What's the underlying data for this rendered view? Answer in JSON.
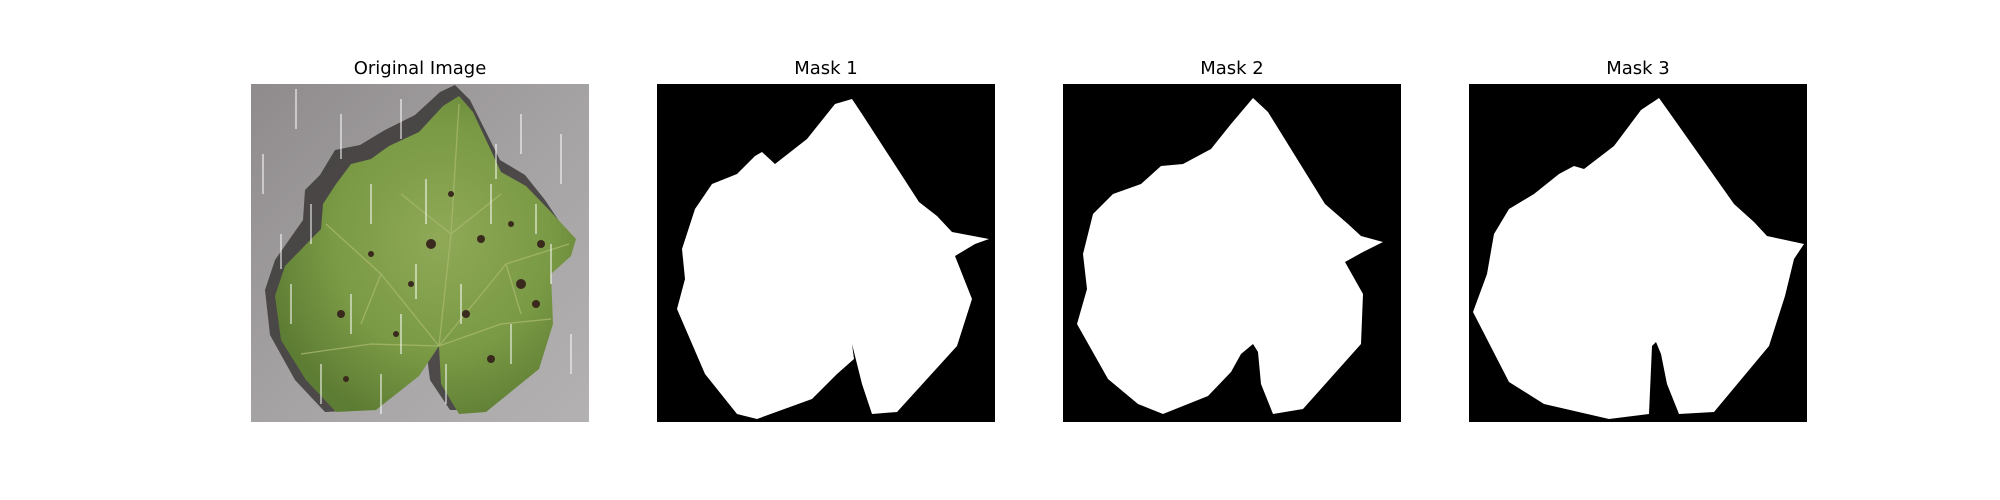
{
  "figure": {
    "panels": [
      {
        "title": "Original Image"
      },
      {
        "title": "Mask 1"
      },
      {
        "title": "Mask 2"
      },
      {
        "title": "Mask 3"
      }
    ]
  },
  "colors": {
    "background": "#ffffff",
    "mask_background": "#000000",
    "mask_foreground": "#ffffff",
    "leaf_green": "#7a9a45",
    "photo_background": "#9d9a9b"
  }
}
